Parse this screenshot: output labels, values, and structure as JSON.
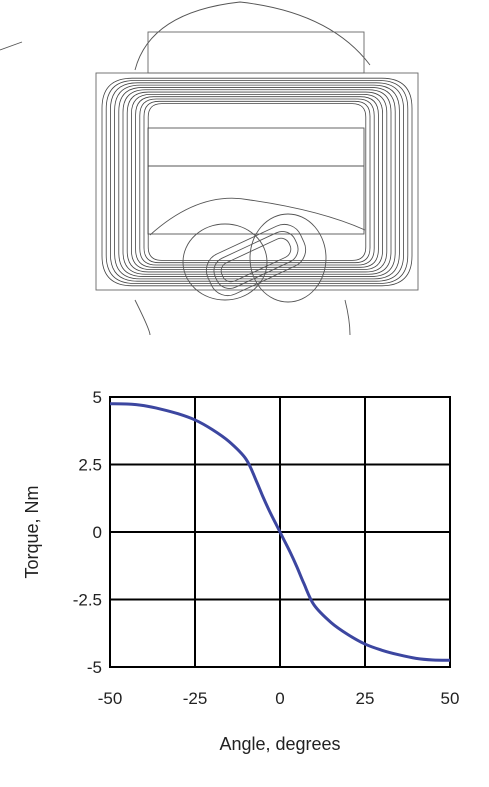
{
  "figure": {
    "field_plot_name": "flux-line-plot"
  },
  "chart_data": {
    "type": "line",
    "xlabel": "Angle, degrees",
    "ylabel": "Torque, Nm",
    "xlim": [
      -50,
      50
    ],
    "ylim": [
      -5,
      5
    ],
    "xticks": [
      -50,
      -25,
      0,
      25,
      50
    ],
    "yticks": [
      5,
      2.5,
      0,
      -2.5,
      -5
    ],
    "grid": true,
    "series": [
      {
        "color": "#3c46a0",
        "x": [
          -50,
          -45,
          -40,
          -35,
          -30,
          -25,
          -20,
          -15,
          -10,
          -7,
          -5,
          -3,
          -1,
          0,
          1,
          3,
          5,
          7,
          10,
          15,
          20,
          25,
          30,
          35,
          40,
          45,
          50
        ],
        "y": [
          4.75,
          4.74,
          4.68,
          4.55,
          4.38,
          4.15,
          3.8,
          3.35,
          2.7,
          1.9,
          1.3,
          0.75,
          0.25,
          0,
          -0.25,
          -0.75,
          -1.3,
          -1.9,
          -2.7,
          -3.35,
          -3.8,
          -4.15,
          -4.38,
          -4.55,
          -4.68,
          -4.74,
          -4.75
        ]
      }
    ]
  }
}
